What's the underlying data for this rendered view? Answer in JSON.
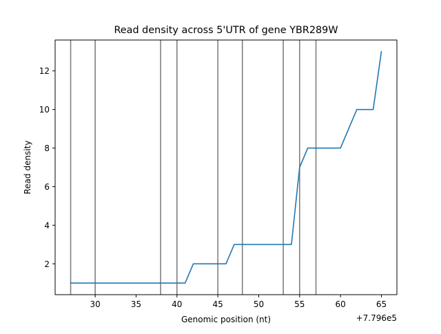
{
  "chart_data": {
    "type": "line",
    "title": "Read density across 5'UTR of gene YBR289W",
    "xlabel": "Genomic position (nt)",
    "ylabel": "Read density",
    "x_offset_label": "+7.796e5",
    "x_offset": 779600,
    "xlim": [
      25.1,
      66.9
    ],
    "ylim": [
      0.4,
      13.6
    ],
    "x_ticks": [
      30,
      35,
      40,
      45,
      50,
      55,
      60,
      65
    ],
    "y_ticks": [
      2,
      4,
      6,
      8,
      10,
      12
    ],
    "grid": false,
    "series": [
      {
        "color": "#1f77b4",
        "x": [
          27,
          28,
          29,
          30,
          31,
          32,
          33,
          34,
          35,
          36,
          37,
          38,
          39,
          40,
          41,
          42,
          43,
          44,
          45,
          46,
          47,
          48,
          49,
          50,
          51,
          52,
          53,
          54,
          55,
          56,
          57,
          58,
          59,
          60,
          61,
          62,
          63,
          64,
          65
        ],
        "y": [
          1,
          1,
          1,
          1,
          1,
          1,
          1,
          1,
          1,
          1,
          1,
          1,
          1,
          1,
          1,
          2,
          2,
          2,
          2,
          2,
          3,
          3,
          3,
          3,
          3,
          3,
          3,
          3,
          7,
          8,
          8,
          8,
          8,
          8,
          9,
          10,
          10,
          10,
          13
        ]
      }
    ],
    "vertical_lines": {
      "color": "#7f7f7f",
      "x": [
        27,
        30,
        38,
        40,
        45,
        48,
        53,
        55,
        57
      ]
    }
  }
}
